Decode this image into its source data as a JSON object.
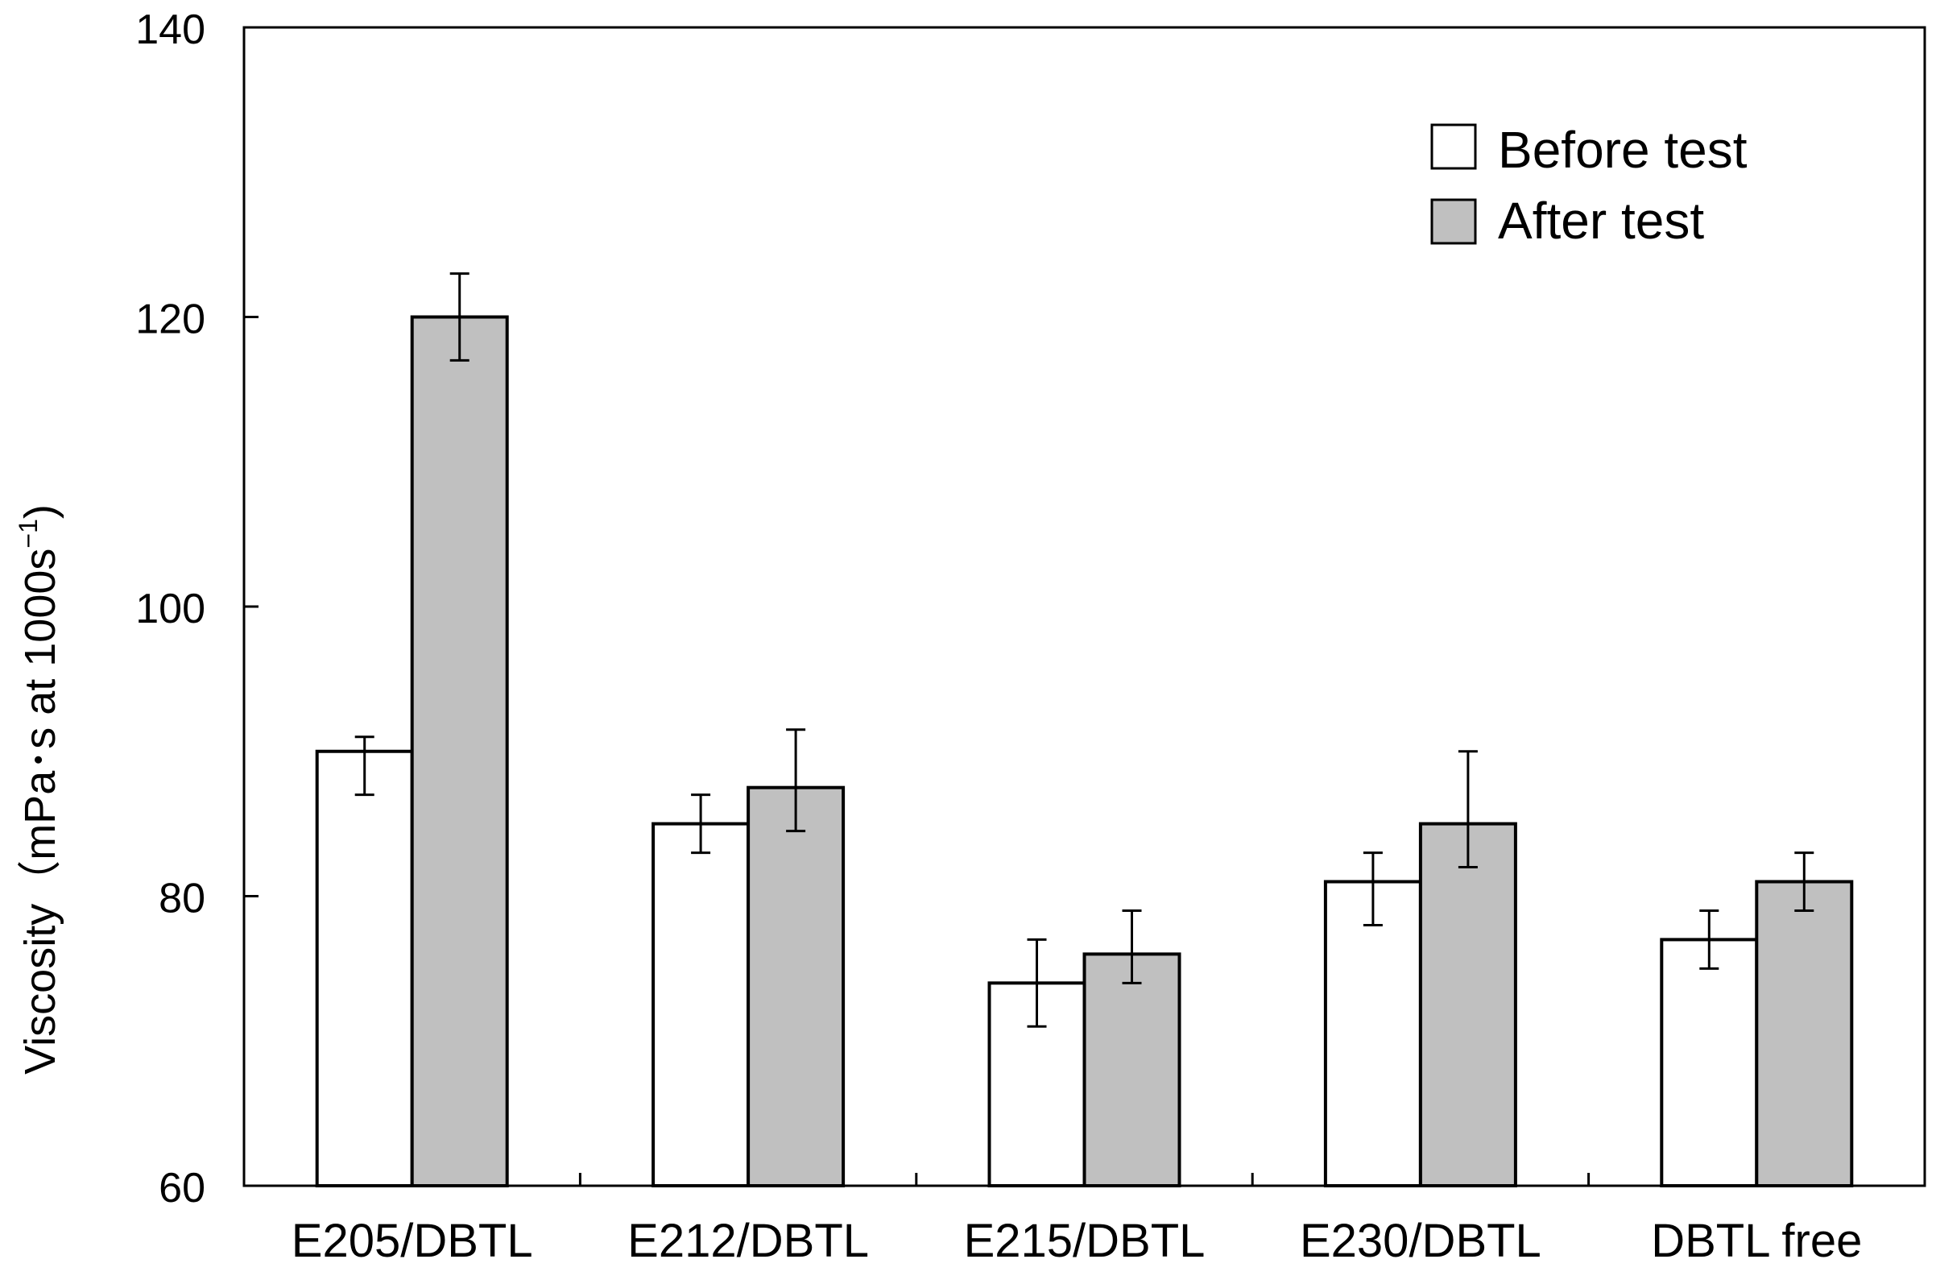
{
  "chart_data": {
    "type": "bar",
    "title": "",
    "xlabel": "",
    "ylabel": "Viscosity（mPa･s at 1000s",
    "ylabel_superscript": "−1",
    "ylabel_close": ")",
    "ylim": [
      60,
      140
    ],
    "yticks": [
      60,
      80,
      100,
      120,
      140
    ],
    "ytick_labels": [
      "60",
      "80",
      "100",
      "120",
      "140"
    ],
    "categories": [
      "E205/DBTL",
      "E212/DBTL",
      "E215/DBTL",
      "E230/DBTL",
      "DBTL free"
    ],
    "series": [
      {
        "name": "Before test",
        "color": "#ffffff",
        "values": [
          90,
          85,
          74,
          81,
          77
        ],
        "errors": [
          [
            87,
            91
          ],
          [
            83,
            87
          ],
          [
            71,
            77
          ],
          [
            78,
            83
          ],
          [
            75,
            79
          ]
        ]
      },
      {
        "name": "After test",
        "color": "#c0c0c0",
        "values": [
          120,
          87.5,
          76,
          85,
          81
        ],
        "errors": [
          [
            117,
            123
          ],
          [
            84.5,
            91.5
          ],
          [
            74,
            79
          ],
          [
            82,
            90
          ],
          [
            79,
            83
          ]
        ]
      }
    ],
    "legend": {
      "position": "top-right",
      "entries": [
        "Before test",
        "After test"
      ]
    },
    "grid": false
  }
}
